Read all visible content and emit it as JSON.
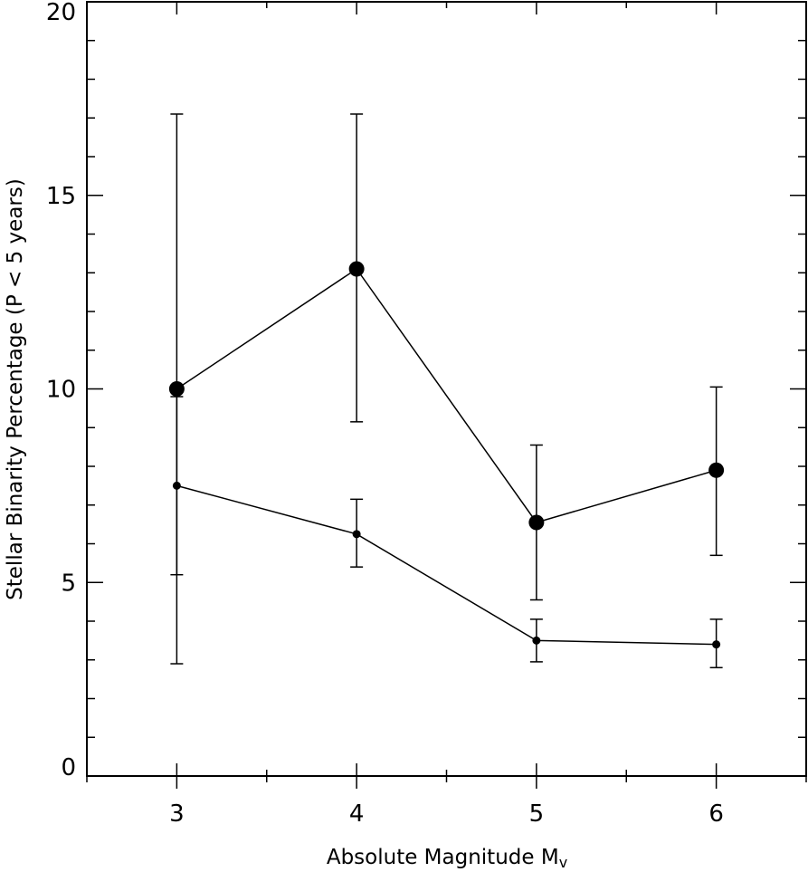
{
  "chart_data": {
    "type": "line",
    "xlabel": "Absolute Magnitude M",
    "xlabel_sub": "v",
    "ylabel": "Stellar Binarity Percentage (P < 5 years)",
    "xlim": [
      2.5,
      6.5
    ],
    "ylim": [
      0,
      20
    ],
    "x_ticks": [
      3,
      4,
      5,
      6
    ],
    "x_tick_labels": [
      "3",
      "4",
      "5",
      "6"
    ],
    "y_ticks": [
      0,
      5,
      10,
      15,
      20
    ],
    "y_tick_labels": [
      "0",
      "5",
      "10",
      "15",
      "20"
    ],
    "x_minor_step": 0.5,
    "y_minor_step": 1,
    "grid": false,
    "series": [
      {
        "marker": "large-circle",
        "x": [
          3,
          4,
          5,
          6
        ],
        "y": [
          10.0,
          13.1,
          6.55,
          7.9
        ],
        "err_low": [
          2.9,
          9.15,
          4.55,
          5.7
        ],
        "err_high": [
          17.1,
          17.1,
          8.55,
          10.05
        ]
      },
      {
        "marker": "small-circle",
        "x": [
          3,
          4,
          5,
          6
        ],
        "y": [
          7.5,
          6.25,
          3.5,
          3.4
        ],
        "err_low": [
          5.2,
          5.4,
          2.95,
          2.8
        ],
        "err_high": [
          9.8,
          7.15,
          4.05,
          4.05
        ]
      }
    ],
    "colors": {
      "line": "#000000",
      "background": "#ffffff"
    }
  }
}
